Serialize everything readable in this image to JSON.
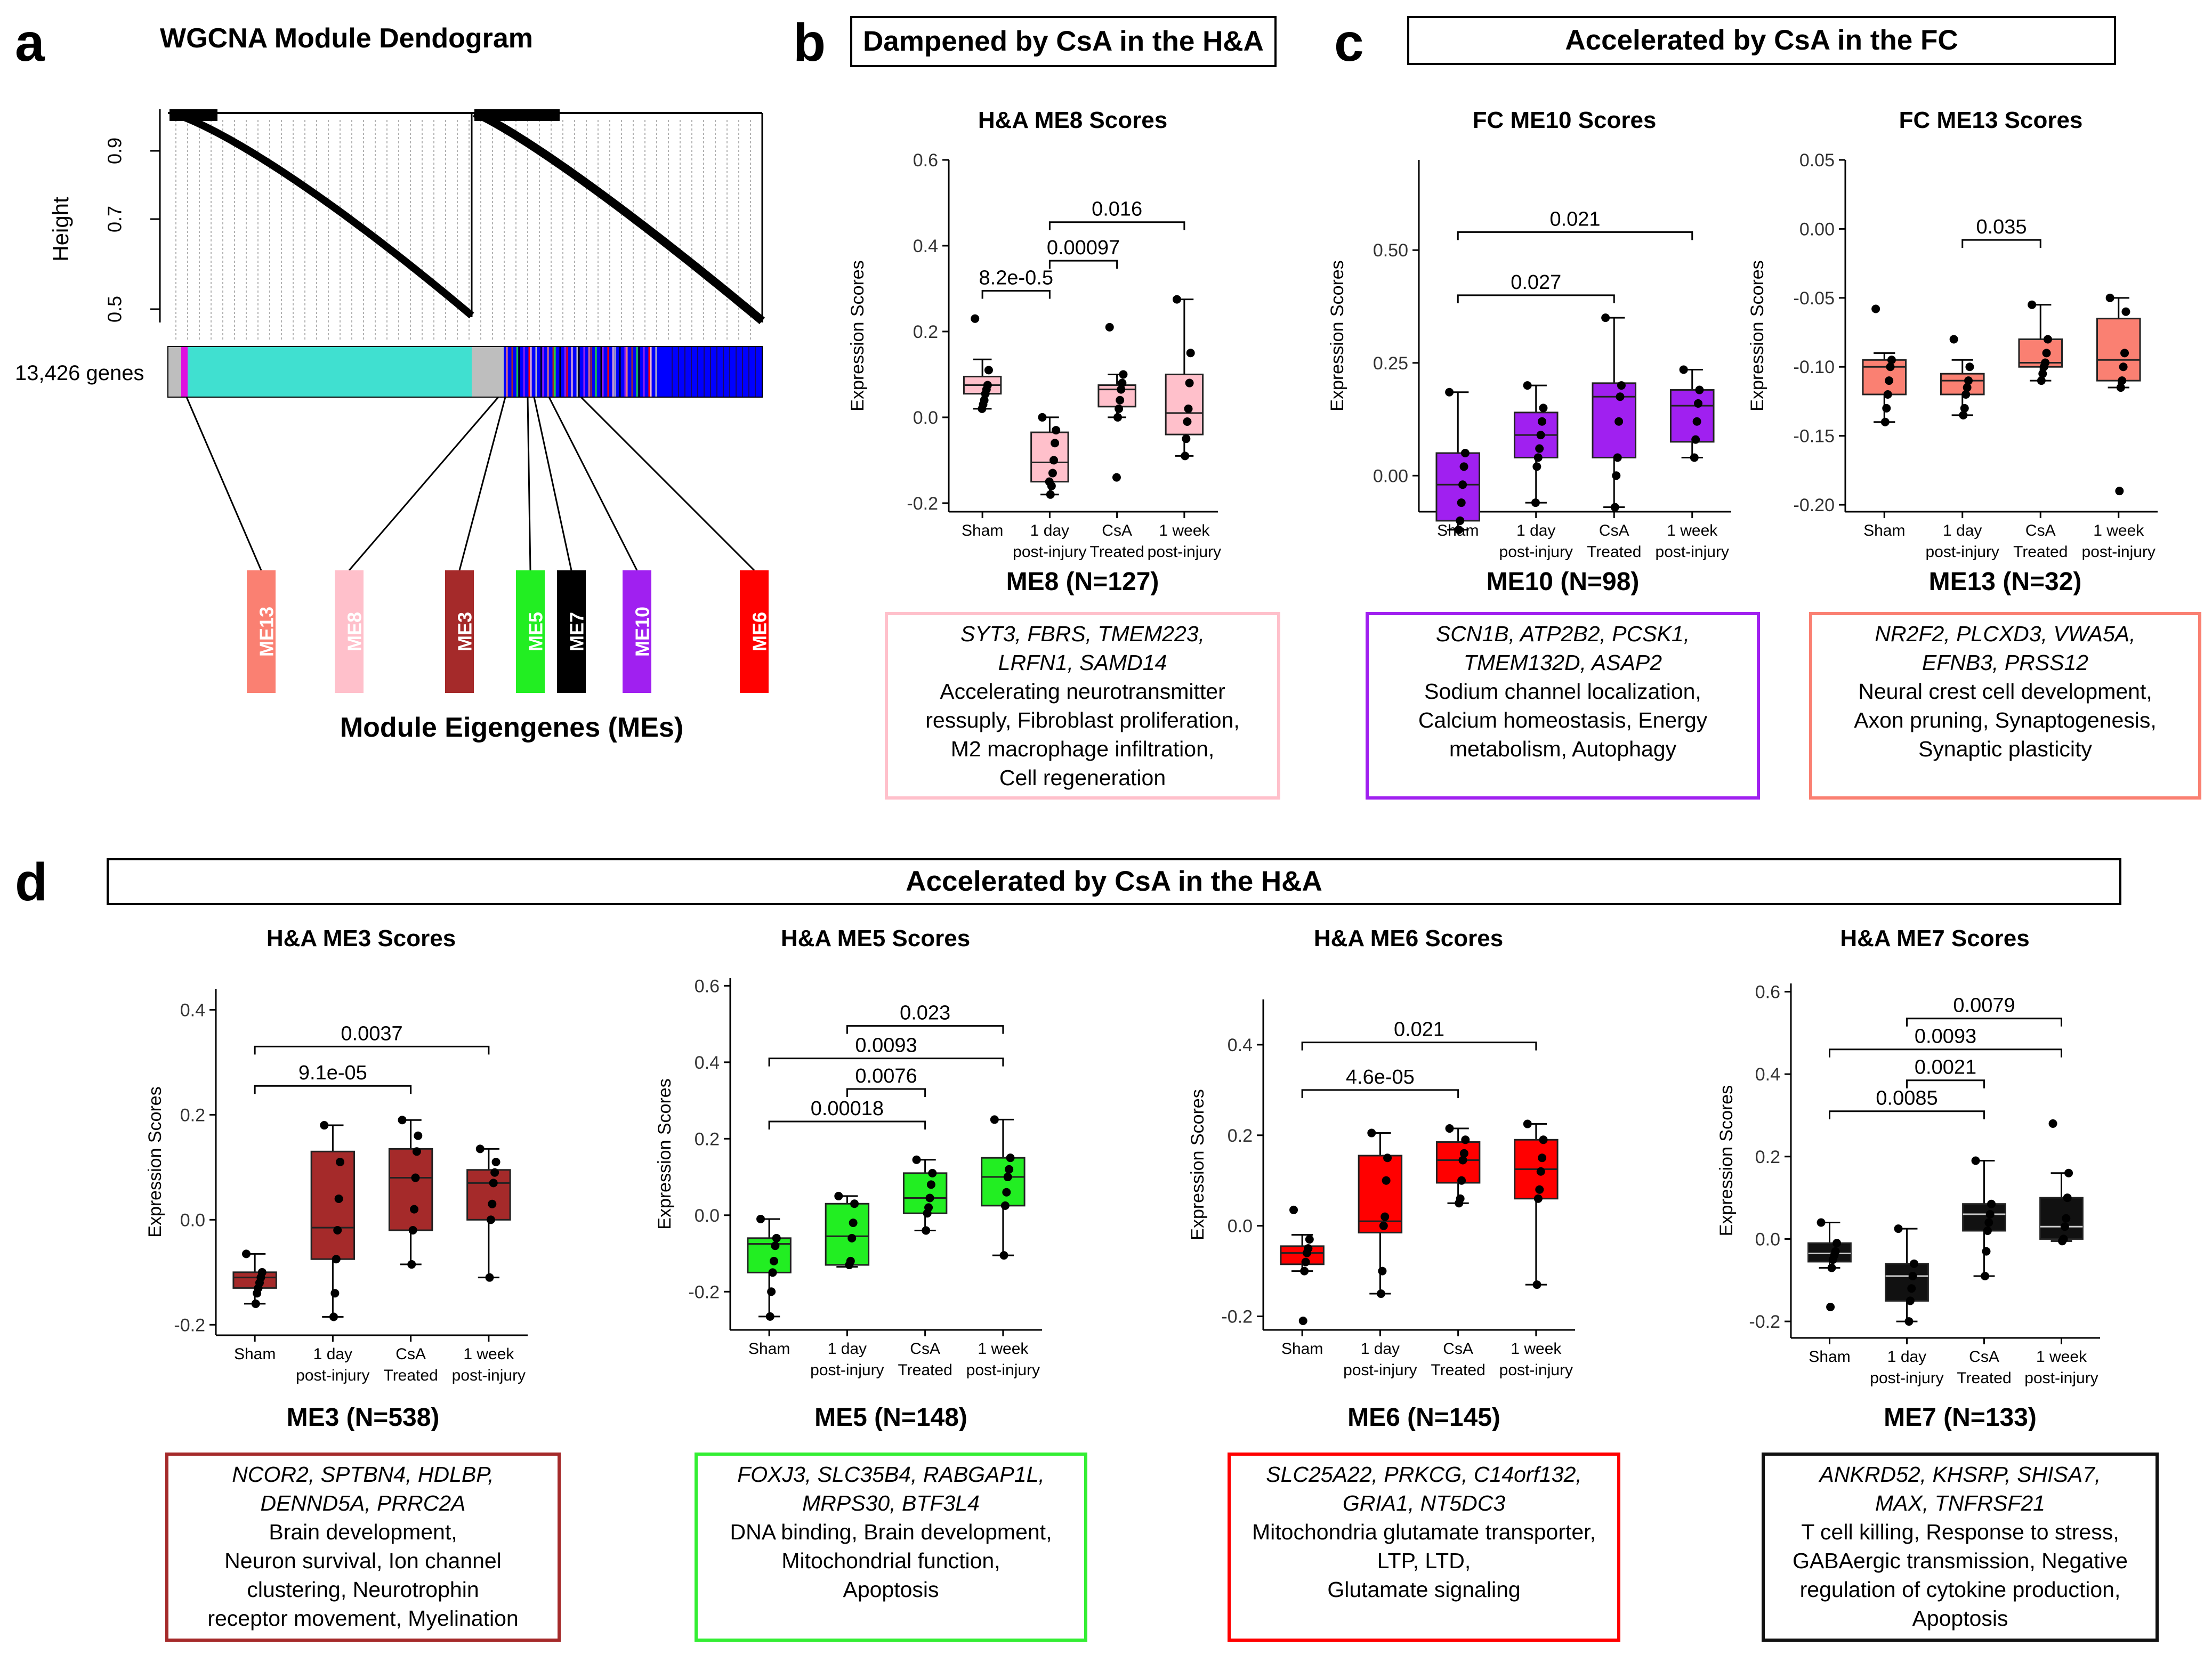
{
  "panel_labels": {
    "a": "a",
    "b": "b",
    "c": "c",
    "d": "d"
  },
  "dendrogram": {
    "title": "WGCNA Module Dendogram",
    "ylabel": "Height",
    "yticks": [
      "0.9",
      "0.7",
      "0.5"
    ],
    "genes_label": "13,426 genes",
    "me_axis_label": "Module Eigengenes (MEs)",
    "modules": [
      {
        "name": "ME13",
        "color": "#FA8072"
      },
      {
        "name": "ME8",
        "color": "#FFC0CB"
      },
      {
        "name": "ME3",
        "color": "#A52A2A"
      },
      {
        "name": "ME5",
        "color": "#22EE22"
      },
      {
        "name": "ME7",
        "color": "#000000"
      },
      {
        "name": "ME10",
        "color": "#A020F0"
      },
      {
        "name": "ME6",
        "color": "#FF0000"
      }
    ],
    "colorbar": {
      "turquoise": "#40E0D0",
      "blue": "#0000FF",
      "grey": "#BEBEBE",
      "magenta": "#E010E0"
    }
  },
  "banners": {
    "b": "Dampened by CsA in the H&A",
    "c": "Accelerated by CsA in the FC",
    "d": "Accelerated by CsA in the H&A"
  },
  "common": {
    "ylabel": "Expression Scores",
    "groups": [
      {
        "line1": "Sham",
        "line2": ""
      },
      {
        "line1": "1 day",
        "line2": "post-injury"
      },
      {
        "line1": "CsA",
        "line2": "Treated"
      },
      {
        "line1": "1 week",
        "line2": "post-injury"
      }
    ]
  },
  "chart_data": [
    {
      "id": "me8",
      "type": "box",
      "title": "H&A ME8 Scores",
      "color": "#FFC0CB",
      "ylim": [
        -0.22,
        0.6
      ],
      "yticks": [
        "0.6",
        "0.4",
        "0.2",
        "0.0",
        "-0.2"
      ],
      "ytick_values": [
        0.6,
        0.4,
        0.2,
        0.0,
        -0.2
      ],
      "boxes": [
        {
          "min": 0.02,
          "q1": 0.055,
          "median": 0.075,
          "q3": 0.095,
          "max": 0.135,
          "points": [
            0.23,
            0.11,
            0.075,
            0.065,
            0.055,
            0.04,
            0.03,
            0.02
          ]
        },
        {
          "min": -0.18,
          "q1": -0.15,
          "median": -0.105,
          "q3": -0.035,
          "max": 0.0,
          "points": [
            0.0,
            -0.03,
            -0.06,
            -0.1,
            -0.13,
            -0.16,
            -0.18,
            -0.15
          ]
        },
        {
          "min": 0.0,
          "q1": 0.025,
          "median": 0.065,
          "q3": 0.075,
          "max": 0.1,
          "points": [
            0.21,
            0.1,
            0.08,
            0.065,
            0.04,
            0.02,
            0.0,
            -0.14
          ]
        },
        {
          "min": -0.09,
          "q1": -0.04,
          "median": 0.01,
          "q3": 0.1,
          "max": 0.275,
          "points": [
            0.275,
            0.15,
            0.08,
            0.02,
            -0.01,
            -0.05,
            -0.09
          ]
        }
      ],
      "brackets": [
        {
          "from": 0,
          "to": 1,
          "label": "8.2e-0.5",
          "y": 0.295
        },
        {
          "from": 1,
          "to": 2,
          "label": "0.00097",
          "y": 0.365
        },
        {
          "from": 1,
          "to": 3,
          "label": "0.016",
          "y": 0.455
        }
      ],
      "module_label": "ME8 (N=127)",
      "genes": "SYT3, FBRS, TMEM223, LRFN1, SAMD14",
      "genes_lines": [
        "SYT3, FBRS, TMEM223,",
        "LRFN1, SAMD14"
      ],
      "desc_lines": [
        "Accelerating neurotransmitter",
        "ressuply, Fibroblast proliferation,",
        "M2 macrophage infiltration,",
        "Cell regeneration"
      ]
    },
    {
      "id": "me10",
      "type": "box",
      "title": "FC ME10 Scores",
      "color": "#A020F0",
      "ylim": [
        -0.08,
        0.7
      ],
      "yticks": [
        "0.50",
        "0.25",
        "0.00"
      ],
      "ytick_values": [
        0.5,
        0.25,
        0.0
      ],
      "boxes": [
        {
          "min": -0.12,
          "q1": -0.1,
          "median": -0.02,
          "q3": 0.05,
          "max": 0.185,
          "points": [
            0.185,
            0.05,
            0.02,
            -0.02,
            -0.06,
            -0.1,
            -0.12
          ]
        },
        {
          "min": -0.06,
          "q1": 0.04,
          "median": 0.09,
          "q3": 0.14,
          "max": 0.2,
          "points": [
            0.2,
            0.15,
            0.12,
            0.09,
            0.06,
            0.04,
            0.02,
            -0.06
          ]
        },
        {
          "min": -0.07,
          "q1": 0.04,
          "median": 0.175,
          "q3": 0.205,
          "max": 0.35,
          "points": [
            0.35,
            0.2,
            0.175,
            0.12,
            0.04,
            0.0,
            -0.07
          ]
        },
        {
          "min": 0.04,
          "q1": 0.075,
          "median": 0.155,
          "q3": 0.19,
          "max": 0.235,
          "points": [
            0.235,
            0.19,
            0.16,
            0.12,
            0.08,
            0.04
          ]
        }
      ],
      "brackets": [
        {
          "from": 0,
          "to": 2,
          "label": "0.027",
          "y": 0.4
        },
        {
          "from": 0,
          "to": 3,
          "label": "0.021",
          "y": 0.54
        }
      ],
      "module_label": "ME10 (N=98)",
      "genes": "SCN1B, ATP2B2, PCSK1, TMEM132D, ASAP2",
      "genes_lines": [
        "SCN1B, ATP2B2, PCSK1,",
        "TMEM132D, ASAP2"
      ],
      "desc_lines": [
        "Sodium channel localization,",
        "Calcium homeostasis, Energy",
        "metabolism, Autophagy"
      ]
    },
    {
      "id": "me13",
      "type": "box",
      "title": "FC ME13 Scores",
      "color": "#FA8072",
      "ylim": [
        -0.205,
        0.05
      ],
      "yticks": [
        "0.05",
        "0.00",
        "-0.05",
        "-0.10",
        "-0.15",
        "-0.20"
      ],
      "ytick_values": [
        0.05,
        0.0,
        -0.05,
        -0.1,
        -0.15,
        -0.2
      ],
      "boxes": [
        {
          "min": -0.14,
          "q1": -0.12,
          "median": -0.1,
          "q3": -0.095,
          "max": -0.09,
          "points": [
            -0.058,
            -0.095,
            -0.1,
            -0.11,
            -0.12,
            -0.13,
            -0.14
          ]
        },
        {
          "min": -0.135,
          "q1": -0.12,
          "median": -0.11,
          "q3": -0.105,
          "max": -0.095,
          "points": [
            -0.08,
            -0.1,
            -0.11,
            -0.115,
            -0.12,
            -0.13,
            -0.135
          ]
        },
        {
          "min": -0.11,
          "q1": -0.1,
          "median": -0.097,
          "q3": -0.08,
          "max": -0.055,
          "points": [
            -0.055,
            -0.08,
            -0.09,
            -0.097,
            -0.1,
            -0.105,
            -0.11
          ]
        },
        {
          "min": -0.115,
          "q1": -0.11,
          "median": -0.095,
          "q3": -0.065,
          "max": -0.05,
          "points": [
            -0.05,
            -0.06,
            -0.09,
            -0.1,
            -0.11,
            -0.115,
            -0.19
          ]
        }
      ],
      "brackets": [
        {
          "from": 1,
          "to": 2,
          "label": "0.035",
          "y": -0.008
        }
      ],
      "module_label": "ME13 (N=32)",
      "genes": "NR2F2, PLCXD3, VWA5A, EFNB3, PRSS12",
      "genes_lines": [
        "NR2F2, PLCXD3, VWA5A,",
        "EFNB3, PRSS12"
      ],
      "desc_lines": [
        "Neural crest cell development,",
        "Axon pruning, Synaptogenesis,",
        "Synaptic plasticity"
      ]
    },
    {
      "id": "me3",
      "type": "box",
      "title": "H&A ME3 Scores",
      "color": "#A52A2A",
      "ylim": [
        -0.22,
        0.44
      ],
      "yticks": [
        "0.4",
        "0.2",
        "0.0",
        "-0.2"
      ],
      "ytick_values": [
        0.4,
        0.2,
        0.0,
        -0.2
      ],
      "boxes": [
        {
          "min": -0.16,
          "q1": -0.13,
          "median": -0.11,
          "q3": -0.1,
          "max": -0.065,
          "points": [
            -0.065,
            -0.1,
            -0.11,
            -0.12,
            -0.13,
            -0.14,
            -0.16
          ]
        },
        {
          "min": -0.185,
          "q1": -0.075,
          "median": -0.015,
          "q3": 0.13,
          "max": 0.18,
          "points": [
            0.18,
            0.11,
            0.04,
            -0.02,
            -0.075,
            -0.14,
            -0.185
          ]
        },
        {
          "min": -0.085,
          "q1": -0.02,
          "median": 0.08,
          "q3": 0.135,
          "max": 0.19,
          "points": [
            0.19,
            0.16,
            0.13,
            0.08,
            0.02,
            -0.02,
            -0.085
          ]
        },
        {
          "min": -0.11,
          "q1": 0.0,
          "median": 0.07,
          "q3": 0.095,
          "max": 0.135,
          "points": [
            0.135,
            0.11,
            0.09,
            0.07,
            0.03,
            0.0,
            -0.11
          ]
        }
      ],
      "brackets": [
        {
          "from": 0,
          "to": 2,
          "label": "9.1e-05",
          "y": 0.255
        },
        {
          "from": 0,
          "to": 3,
          "label": "0.0037",
          "y": 0.33
        }
      ],
      "module_label": "ME3 (N=538)",
      "genes": "NCOR2, SPTBN4, HDLBP, DENND5A, PRRC2A",
      "genes_lines": [
        "NCOR2, SPTBN4, HDLBP,",
        "DENND5A, PRRC2A"
      ],
      "desc_lines": [
        "Brain development,",
        "Neuron survival, Ion channel",
        "clustering, Neurotrophin",
        "receptor movement, Myelination"
      ]
    },
    {
      "id": "me5",
      "type": "box",
      "title": "H&A ME5 Scores",
      "color": "#22EE22",
      "ylim": [
        -0.3,
        0.62
      ],
      "yticks": [
        "0.6",
        "0.4",
        "0.2",
        "0.0",
        "-0.2"
      ],
      "ytick_values": [
        0.6,
        0.4,
        0.2,
        0.0,
        -0.2
      ],
      "boxes": [
        {
          "min": -0.265,
          "q1": -0.15,
          "median": -0.075,
          "q3": -0.06,
          "max": -0.01,
          "points": [
            -0.01,
            -0.06,
            -0.08,
            -0.12,
            -0.15,
            -0.2,
            -0.265
          ]
        },
        {
          "min": -0.135,
          "q1": -0.13,
          "median": -0.055,
          "q3": 0.03,
          "max": 0.05,
          "points": [
            0.05,
            0.03,
            -0.02,
            -0.06,
            -0.12,
            -0.13
          ]
        },
        {
          "min": -0.04,
          "q1": 0.005,
          "median": 0.045,
          "q3": 0.11,
          "max": 0.145,
          "points": [
            0.145,
            0.11,
            0.08,
            0.045,
            0.02,
            0.005,
            -0.04
          ]
        },
        {
          "min": -0.105,
          "q1": 0.025,
          "median": 0.1,
          "q3": 0.15,
          "max": 0.25,
          "points": [
            0.25,
            0.15,
            0.12,
            0.1,
            0.06,
            0.025,
            -0.105
          ]
        }
      ],
      "brackets": [
        {
          "from": 0,
          "to": 2,
          "label": "0.00018",
          "y": 0.245
        },
        {
          "from": 1,
          "to": 2,
          "label": "0.0076",
          "y": 0.33
        },
        {
          "from": 0,
          "to": 3,
          "label": "0.0093",
          "y": 0.41
        },
        {
          "from": 1,
          "to": 3,
          "label": "0.023",
          "y": 0.495
        }
      ],
      "module_label": "ME5 (N=148)",
      "genes": "FOXJ3, SLC35B4, RABGAP1L, MRPS30, BTF3L4",
      "genes_lines": [
        "FOXJ3, SLC35B4, RABGAP1L,",
        "MRPS30, BTF3L4"
      ],
      "desc_lines": [
        "DNA binding, Brain development,",
        "Mitochondrial function,",
        "Apoptosis"
      ]
    },
    {
      "id": "me6",
      "type": "box",
      "title": "H&A ME6 Scores",
      "color": "#FF0000",
      "ylim": [
        -0.23,
        0.5
      ],
      "yticks": [
        "0.4",
        "0.2",
        "0.0",
        "-0.2"
      ],
      "ytick_values": [
        0.4,
        0.2,
        0.0,
        -0.2
      ],
      "boxes": [
        {
          "min": -0.1,
          "q1": -0.085,
          "median": -0.06,
          "q3": -0.045,
          "max": -0.02,
          "points": [
            0.035,
            -0.03,
            -0.05,
            -0.06,
            -0.08,
            -0.1,
            -0.21
          ]
        },
        {
          "min": -0.15,
          "q1": -0.015,
          "median": 0.01,
          "q3": 0.155,
          "max": 0.205,
          "points": [
            0.205,
            0.15,
            0.1,
            0.02,
            0.0,
            -0.1,
            -0.15
          ]
        },
        {
          "min": 0.05,
          "q1": 0.095,
          "median": 0.145,
          "q3": 0.185,
          "max": 0.215,
          "points": [
            0.215,
            0.19,
            0.16,
            0.145,
            0.1,
            0.06,
            0.05
          ]
        },
        {
          "min": -0.13,
          "q1": 0.06,
          "median": 0.125,
          "q3": 0.19,
          "max": 0.225,
          "points": [
            0.225,
            0.19,
            0.15,
            0.12,
            0.08,
            0.06,
            -0.13
          ]
        }
      ],
      "brackets": [
        {
          "from": 0,
          "to": 2,
          "label": "4.6e-05",
          "y": 0.3
        },
        {
          "from": 0,
          "to": 3,
          "label": "0.021",
          "y": 0.405
        }
      ],
      "module_label": "ME6 (N=145)",
      "genes": "SLC25A22, PRKCG, C14orf132, GRIA1, NT5DC3",
      "genes_lines": [
        "SLC25A22, PRKCG, C14orf132,",
        "GRIA1, NT5DC3"
      ],
      "desc_lines": [
        "Mitochondria glutamate transporter,",
        "LTP, LTD,",
        "Glutamate signaling"
      ]
    },
    {
      "id": "me7",
      "type": "box",
      "title": "H&A ME7 Scores",
      "color": "#111111",
      "ylim": [
        -0.24,
        0.62
      ],
      "yticks": [
        "0.6",
        "0.4",
        "0.2",
        "0.0",
        "-0.2"
      ],
      "ytick_values": [
        0.6,
        0.4,
        0.2,
        0.0,
        -0.2
      ],
      "boxes": [
        {
          "min": -0.07,
          "q1": -0.055,
          "median": -0.035,
          "q3": -0.01,
          "max": 0.04,
          "points": [
            0.04,
            -0.01,
            -0.03,
            -0.04,
            -0.05,
            -0.07,
            -0.165
          ]
        },
        {
          "min": -0.2,
          "q1": -0.15,
          "median": -0.09,
          "q3": -0.06,
          "max": 0.025,
          "points": [
            0.025,
            -0.06,
            -0.09,
            -0.12,
            -0.15,
            -0.2
          ]
        },
        {
          "min": -0.09,
          "q1": 0.02,
          "median": 0.06,
          "q3": 0.085,
          "max": 0.19,
          "points": [
            0.19,
            0.085,
            0.06,
            0.04,
            0.02,
            -0.03,
            -0.09
          ]
        },
        {
          "min": -0.005,
          "q1": 0.0,
          "median": 0.03,
          "q3": 0.1,
          "max": 0.16,
          "points": [
            0.28,
            0.16,
            0.1,
            0.05,
            0.03,
            0.0,
            -0.005
          ]
        }
      ],
      "brackets": [
        {
          "from": 0,
          "to": 2,
          "label": "0.0085",
          "y": 0.31
        },
        {
          "from": 1,
          "to": 2,
          "label": "0.0021",
          "y": 0.385
        },
        {
          "from": 0,
          "to": 3,
          "label": "0.0093",
          "y": 0.46
        },
        {
          "from": 1,
          "to": 3,
          "label": "0.0079",
          "y": 0.535
        }
      ],
      "module_label": "ME7 (N=133)",
      "genes": "ANKRD52, KHSRP, SHISA7, MAX, TNFRSF21",
      "genes_lines": [
        "ANKRD52, KHSRP, SHISA7,",
        "MAX, TNFRSF21"
      ],
      "desc_lines": [
        "T cell killing, Response to stress,",
        "GABAergic transmission, Negative",
        "regulation of cytokine production,",
        "Apoptosis"
      ]
    }
  ]
}
